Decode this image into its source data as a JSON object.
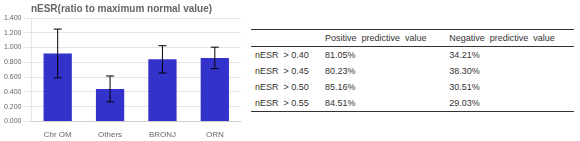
{
  "chart_data": {
    "type": "bar",
    "title": "nESR(ratio to maximum normal value)",
    "categories": [
      "Chr OM",
      "Others",
      "BRONJ",
      "ORN"
    ],
    "values": [
      0.92,
      0.44,
      0.84,
      0.86
    ],
    "errors": [
      0.33,
      0.175,
      0.185,
      0.145
    ],
    "color": "#3333CC",
    "ylim": [
      0.0,
      1.4
    ],
    "yticks": [
      {
        "value": 0.0,
        "label": "0.000"
      },
      {
        "value": 0.2,
        "label": "0.200"
      },
      {
        "value": 0.4,
        "label": "0.400"
      },
      {
        "value": 0.6,
        "label": "0.600"
      },
      {
        "value": 0.8,
        "label": "0.800"
      },
      {
        "value": 1.0,
        "label": "1.000"
      },
      {
        "value": 1.2,
        "label": "1.200"
      },
      {
        "value": 1.4,
        "label": "1.400"
      }
    ],
    "grid": true,
    "table": {
      "columns": [
        "Positive  predictive  value",
        "Negative  predictive  value"
      ],
      "rows": [
        [
          "nESR  > 0.40",
          "81.05%",
          "34.21%"
        ],
        [
          "nESR  > 0.45",
          "80.23%",
          "38.30%"
        ],
        [
          "nESR  > 0.50",
          "85.16%",
          "30.51%"
        ],
        [
          "nESR  > 0.55",
          "84.51%",
          "29.03%"
        ]
      ]
    }
  }
}
